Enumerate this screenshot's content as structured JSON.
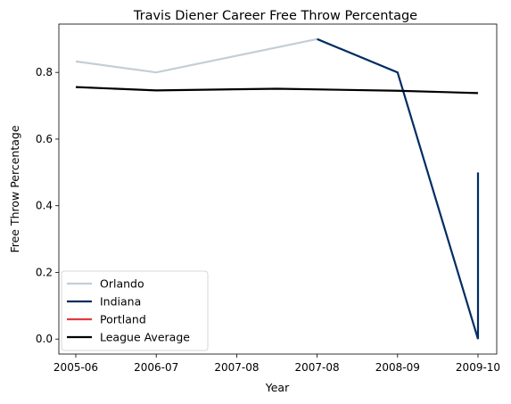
{
  "chart_data": {
    "type": "line",
    "title": "Travis Diener Career Free Throw Percentage",
    "xlabel": "Year",
    "ylabel": "Free Throw Percentage",
    "x_ticks": [
      "2005-06",
      "2006-07",
      "2007-08",
      "2007-08",
      "2008-09",
      "2009-10"
    ],
    "y_ticks": [
      "0.0",
      "0.2",
      "0.4",
      "0.6",
      "0.8"
    ],
    "ylim": [
      -0.045,
      0.945
    ],
    "grid": false,
    "legend_position": "lower-left",
    "series": [
      {
        "name": "Orlando",
        "color": "#c4ced4",
        "points": [
          {
            "x": "2005-06",
            "y": 0.833
          },
          {
            "x": "2006-07",
            "y": 0.8
          },
          {
            "x": "2007-08",
            "y": 0.9
          }
        ]
      },
      {
        "name": "Indiana",
        "color": "#002d62",
        "points": [
          {
            "x": "2007-08",
            "y": 0.9
          },
          {
            "x": "2008-09",
            "y": 0.8
          },
          {
            "x": "2009-10",
            "y": 0.0
          },
          {
            "x": "2009-10",
            "y": 0.5
          }
        ]
      },
      {
        "name": "Portland",
        "color": "#e03a3e",
        "points": [
          {
            "x": "2009-10",
            "y": 0.0
          }
        ]
      },
      {
        "name": "League Average",
        "color": "#000000",
        "points": [
          {
            "x": "2005-06",
            "y": 0.756
          },
          {
            "x": "2006-07",
            "y": 0.746
          },
          {
            "x": "2007-08",
            "y": 0.751
          },
          {
            "x": "2008-09",
            "y": 0.745
          },
          {
            "x": "2009-10",
            "y": 0.738
          }
        ]
      }
    ]
  }
}
